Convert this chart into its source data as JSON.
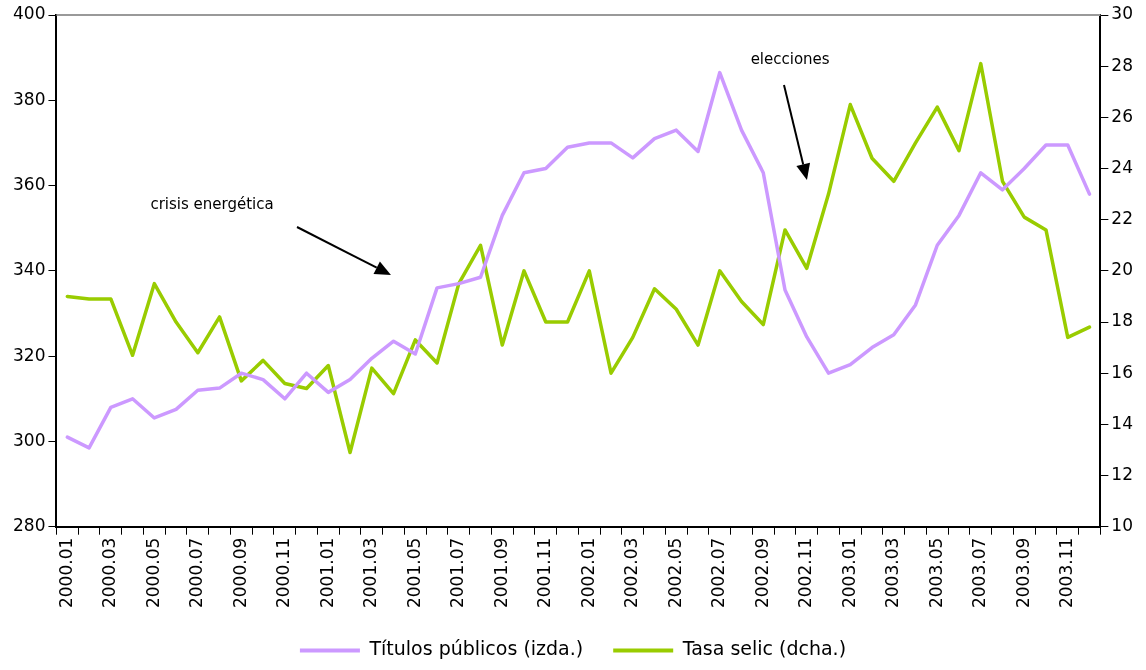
{
  "chart_data": {
    "type": "line",
    "categories": [
      "2000.01",
      null,
      "2000.03",
      null,
      "2000.05",
      null,
      "2000.07",
      null,
      "2000.09",
      null,
      "2000.11",
      null,
      "2001.01",
      null,
      "2001.03",
      null,
      "2001.05",
      null,
      "2001.07",
      null,
      "2001.09",
      null,
      "2001.11",
      null,
      "2002.01",
      null,
      "2002.03",
      null,
      "2002.05",
      null,
      "2002.07",
      null,
      "2002.09",
      null,
      "2002.11",
      null,
      "2003.01",
      null,
      "2003.03",
      null,
      "2003.05",
      null,
      "2003.07",
      null,
      "2003.09",
      null,
      "2003.11",
      null
    ],
    "series": [
      {
        "name": "Títulos públicos (izda.)",
        "color": "#cc99ff",
        "values": [
          301,
          298.5,
          308,
          310,
          305.5,
          307.5,
          312,
          312.5,
          316,
          314.5,
          310,
          316,
          311.5,
          314.5,
          319.5,
          323.5,
          320.5,
          336,
          337,
          338.5,
          353,
          363,
          364,
          369,
          370,
          370,
          366.5,
          371,
          373,
          368,
          386.5,
          373,
          363,
          335.5,
          324.5,
          316,
          318,
          322,
          325,
          332,
          346,
          353,
          363,
          359,
          364,
          369.5,
          369.5,
          358
        ]
      },
      {
        "name": "Tasa selic (dcha.)",
        "color": "#99cc00",
        "axis": "y2",
        "values": [
          19.0,
          18.9,
          18.9,
          16.7,
          19.5,
          18.0,
          16.8,
          18.2,
          15.7,
          16.5,
          15.6,
          15.4,
          16.3,
          12.9,
          16.2,
          15.2,
          17.3,
          16.4,
          19.5,
          21.0,
          17.1,
          20.0,
          18.0,
          18.0,
          20.0,
          16.0,
          17.4,
          19.3,
          18.5,
          17.1,
          20.0,
          18.8,
          17.9,
          21.6,
          20.1,
          23.0,
          26.5,
          24.4,
          23.5,
          25.0,
          26.4,
          24.7,
          28.1,
          23.5,
          22.1,
          21.6,
          17.4,
          17.8
        ]
      }
    ],
    "ylim": [
      280,
      400
    ],
    "yticks": [
      280,
      300,
      320,
      340,
      360,
      380,
      400
    ],
    "y2lim": [
      10,
      30
    ],
    "y2ticks": [
      10,
      12,
      14,
      16,
      18,
      20,
      22,
      24,
      26,
      28,
      30
    ],
    "annotations": [
      "crisis energética",
      "elecciones"
    ],
    "grid": false,
    "legend": "bottom",
    "marker": "none",
    "line_style": "solid"
  }
}
